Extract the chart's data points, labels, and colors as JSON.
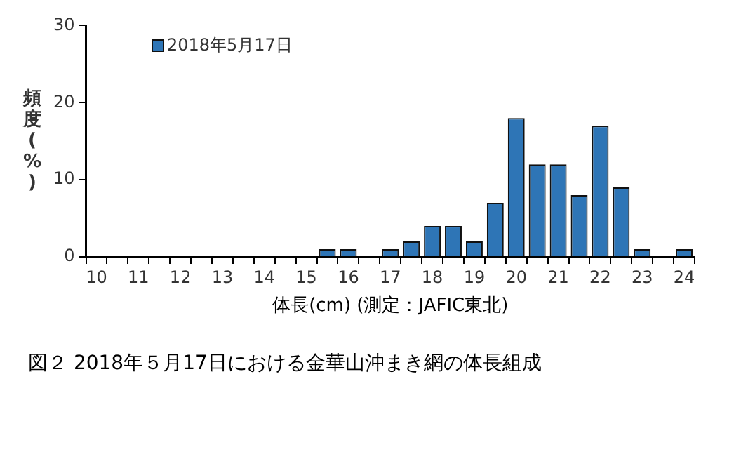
{
  "chart_data": {
    "type": "bar",
    "xlabel": "体長(cm) (測定：JAFIC東北)",
    "ylabel": "頻度(%)",
    "categories": [
      "10",
      null,
      "11",
      null,
      "12",
      null,
      "13",
      null,
      "14",
      null,
      "15",
      null,
      "16",
      null,
      "17",
      null,
      "18",
      null,
      "19",
      null,
      "20",
      null,
      "21",
      null,
      "22",
      null,
      "23",
      null,
      "24"
    ],
    "series": [
      {
        "name": "2018年5月17日",
        "color": "#2e75b6",
        "values": [
          0,
          0,
          0,
          0,
          0,
          0,
          0,
          0,
          0,
          0,
          0,
          1,
          1,
          0,
          1,
          2,
          4,
          4,
          2,
          7,
          18,
          12,
          12,
          8,
          17,
          9,
          1,
          0,
          1
        ]
      }
    ],
    "ylim": [
      0,
      30
    ],
    "yticks": [
      0,
      10,
      20,
      30
    ],
    "grid": false,
    "legend": "top left",
    "annotations": [
      "図２ 2018年５月17日における金華山沖まき網の体長組成"
    ]
  }
}
